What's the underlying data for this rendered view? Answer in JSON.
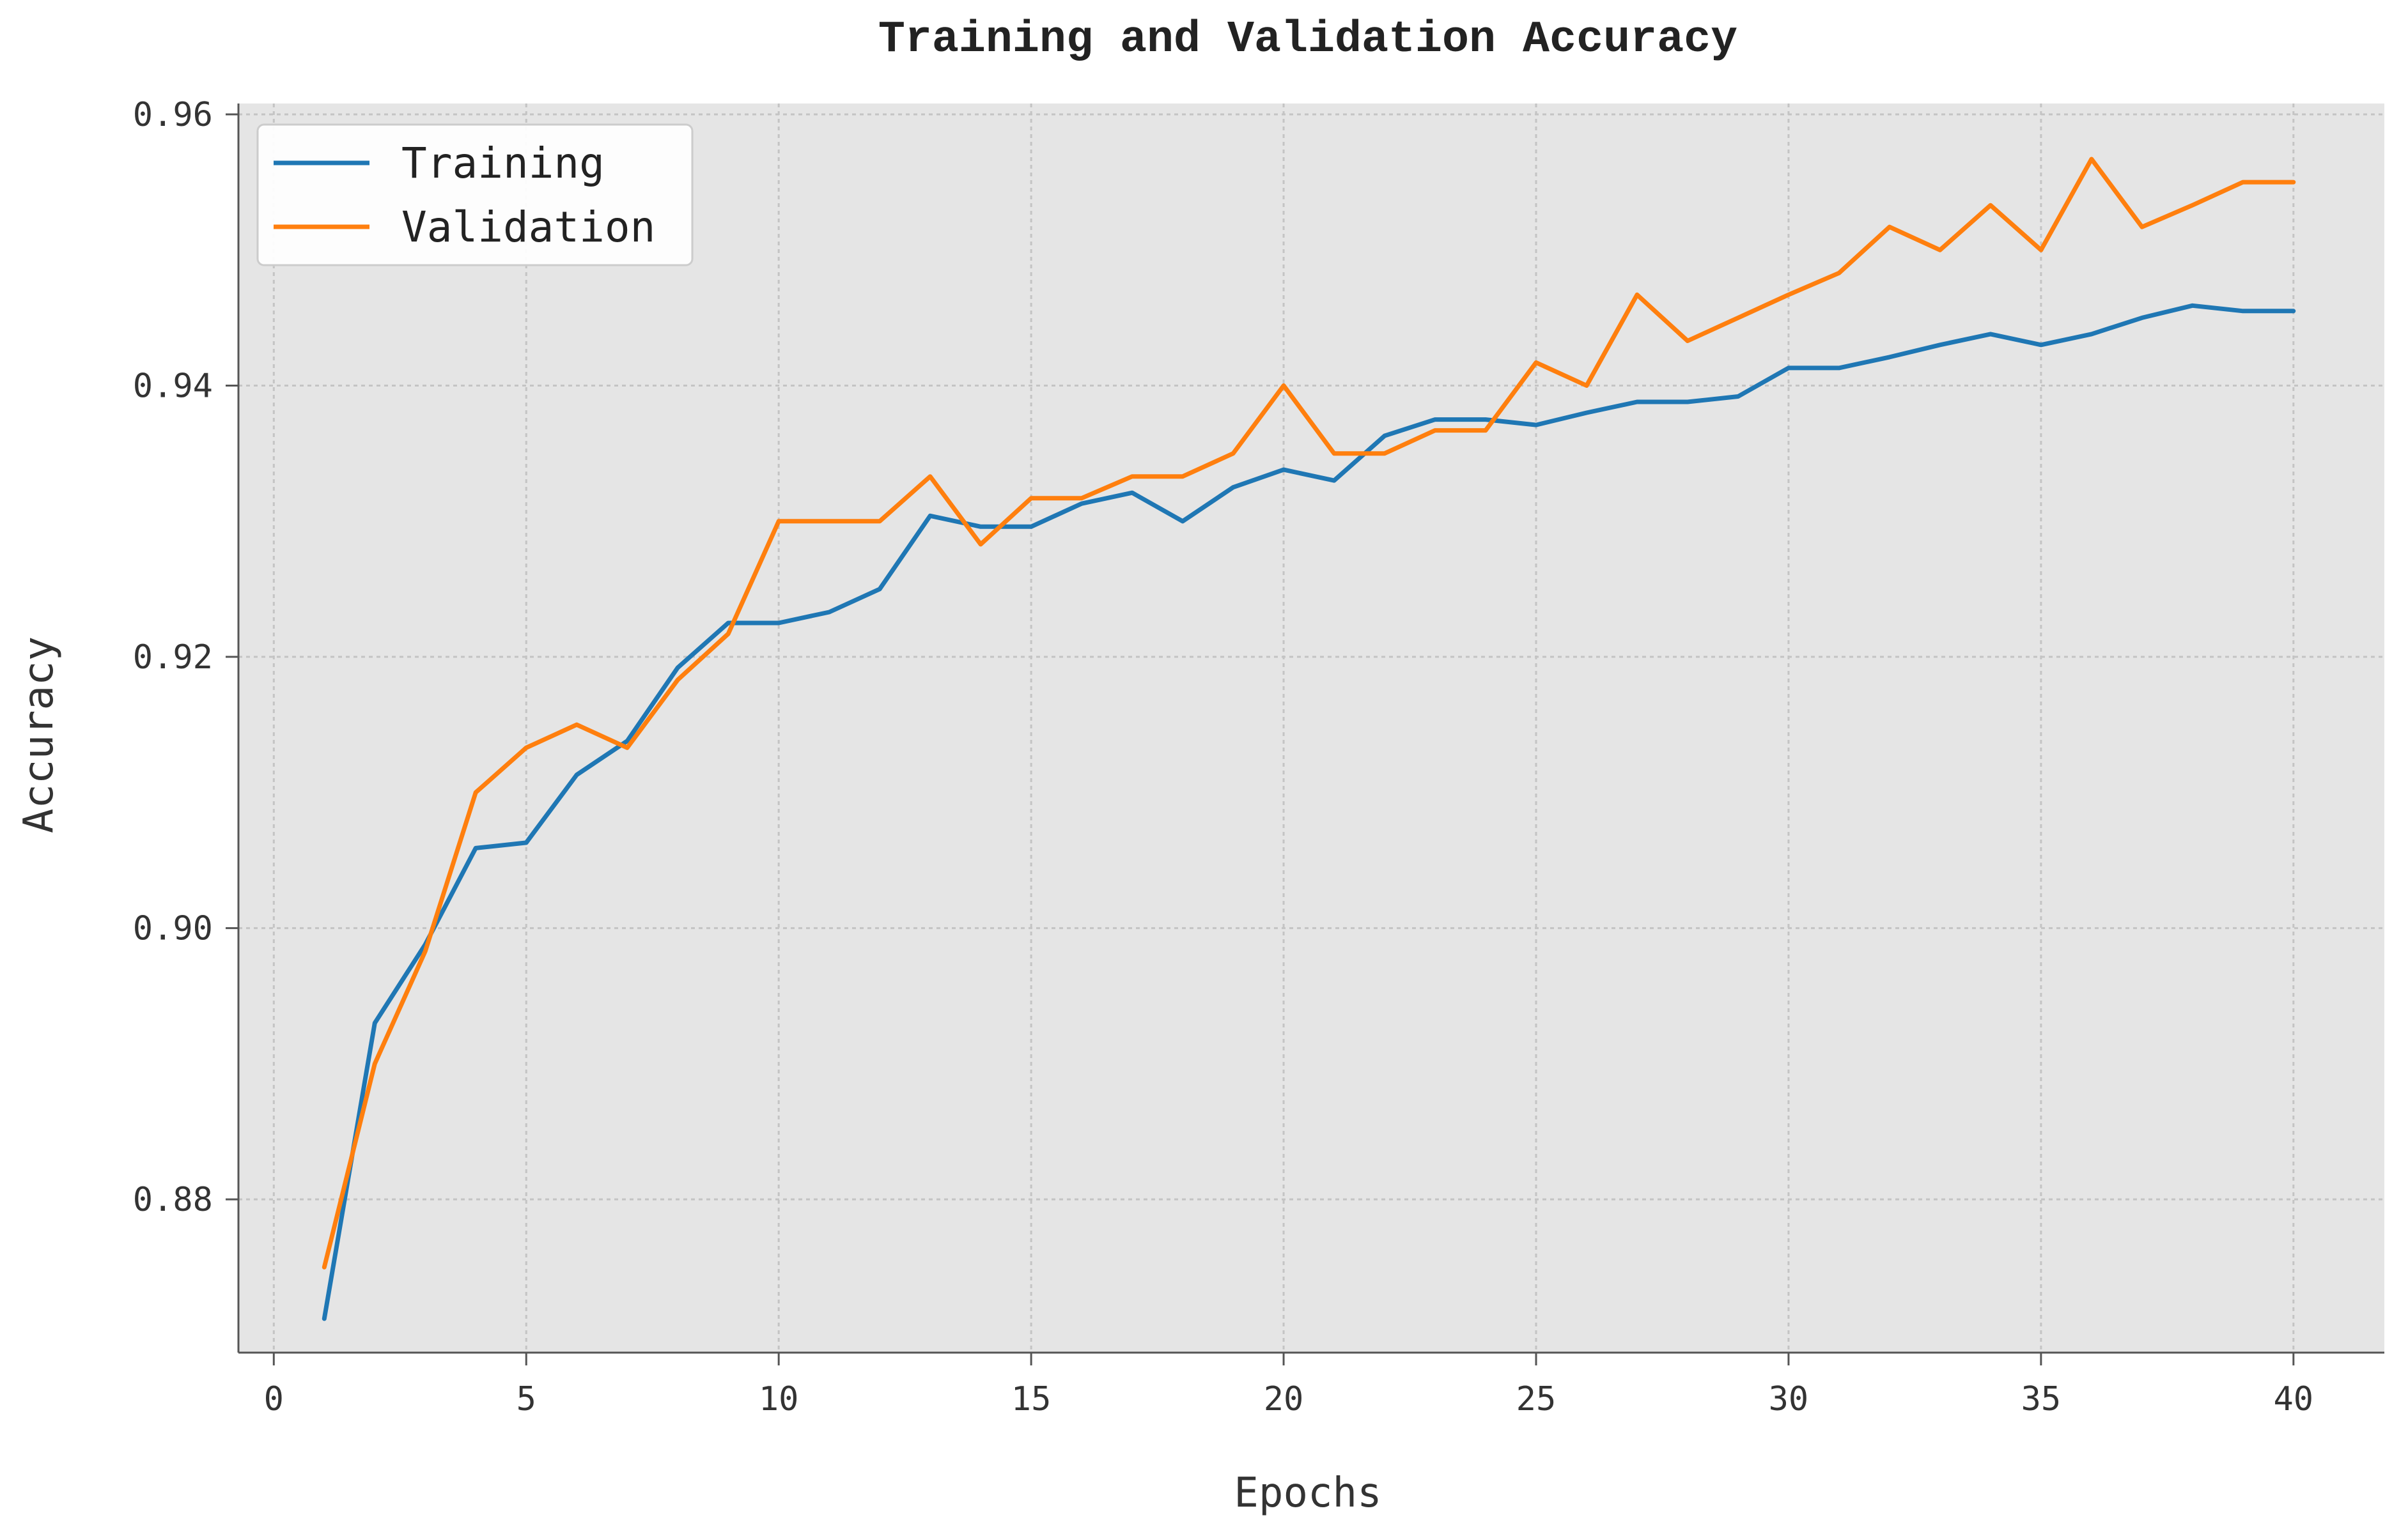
{
  "chart_data": {
    "type": "line",
    "title": "Training and Validation Accuracy",
    "xlabel": "Epochs",
    "ylabel": "Accuracy",
    "xlim": [
      -0.7,
      41.8
    ],
    "ylim": [
      0.8687,
      0.9608
    ],
    "xticks": [
      0,
      5,
      10,
      15,
      20,
      25,
      30,
      35,
      40
    ],
    "xtick_labels": [
      "0",
      "5",
      "10",
      "15",
      "20",
      "25",
      "30",
      "35",
      "40"
    ],
    "yticks": [
      0.88,
      0.9,
      0.92,
      0.94,
      0.96
    ],
    "ytick_labels": [
      "0.88",
      "0.90",
      "0.92",
      "0.94",
      "0.96"
    ],
    "grid": true,
    "legend_position": "upper-left",
    "background": "#e5e5e5",
    "x": [
      1,
      2,
      3,
      4,
      5,
      6,
      7,
      8,
      9,
      10,
      11,
      12,
      13,
      14,
      15,
      16,
      17,
      18,
      19,
      20,
      21,
      22,
      23,
      24,
      25,
      26,
      27,
      28,
      29,
      30,
      31,
      32,
      33,
      34,
      35,
      36,
      37,
      38,
      39,
      40
    ],
    "series": [
      {
        "name": "Training",
        "color": "#1f77b4",
        "values": [
          0.8712,
          0.893,
          0.8988,
          0.9059,
          0.9063,
          0.9113,
          0.9138,
          0.9192,
          0.9225,
          0.9225,
          0.9233,
          0.925,
          0.9304,
          0.9296,
          0.9296,
          0.9313,
          0.9321,
          0.93,
          0.9325,
          0.9338,
          0.933,
          0.9363,
          0.9375,
          0.9375,
          0.9371,
          0.938,
          0.9388,
          0.9388,
          0.9392,
          0.9413,
          0.9413,
          0.9421,
          0.943,
          0.9438,
          0.943,
          0.9438,
          0.945,
          0.9459,
          0.9455,
          0.9455
        ]
      },
      {
        "name": "Validation",
        "color": "#ff7f0e",
        "values": [
          0.875,
          0.89,
          0.8983,
          0.91,
          0.9133,
          0.915,
          0.9133,
          0.9183,
          0.9217,
          0.93,
          0.93,
          0.93,
          0.9333,
          0.9283,
          0.9317,
          0.9317,
          0.9333,
          0.9333,
          0.935,
          0.94,
          0.935,
          0.935,
          0.9367,
          0.9367,
          0.9417,
          0.94,
          0.9467,
          0.9433,
          0.945,
          0.9467,
          0.9483,
          0.9517,
          0.95,
          0.9533,
          0.95,
          0.9567,
          0.9517,
          0.9533,
          0.955,
          0.955
        ]
      }
    ]
  }
}
